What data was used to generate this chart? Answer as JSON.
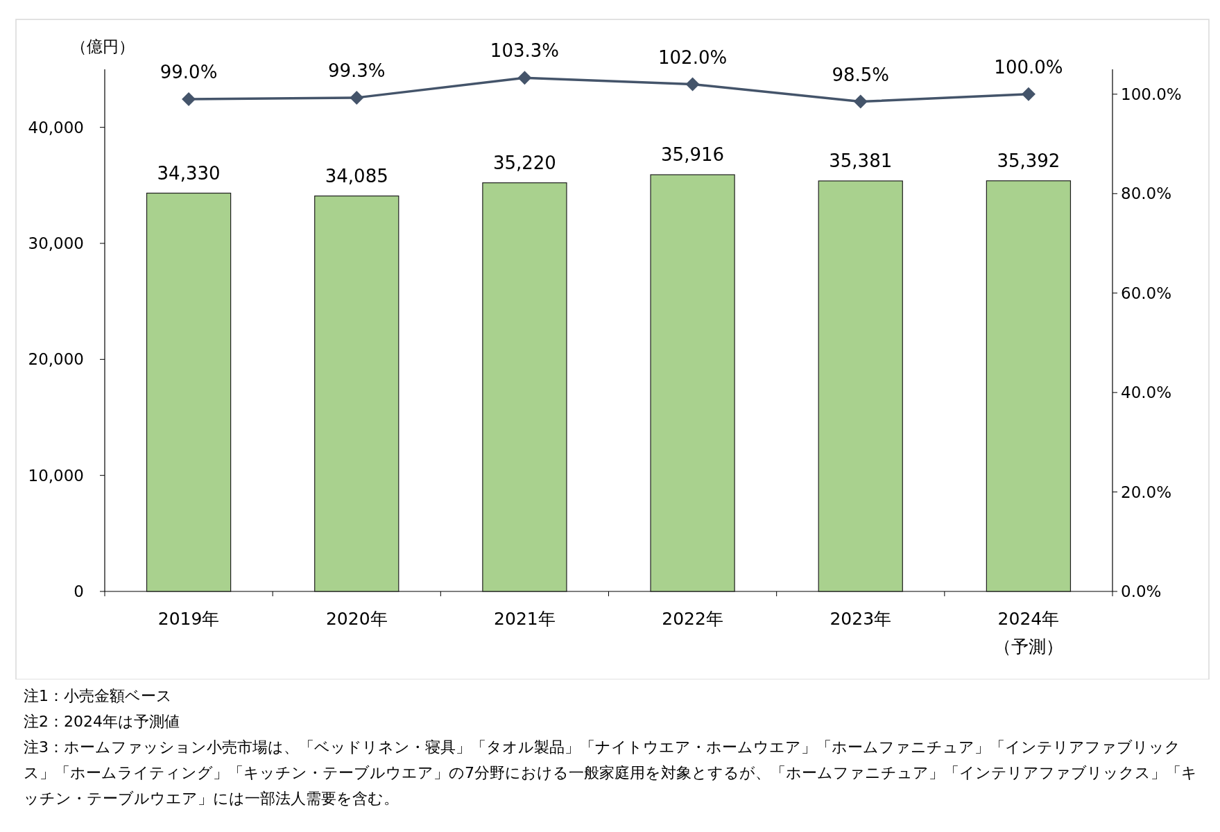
{
  "chart_data": {
    "type": "bar",
    "ylabel": "（億円）",
    "categories": [
      "2019年",
      "2020年",
      "2021年",
      "2022年",
      "2023年",
      "2024年（予測）"
    ],
    "series": [
      {
        "color": "#a9d18e",
        "values": [
          34330,
          34085,
          35220,
          35916,
          35381,
          35392
        ],
        "value_labels": [
          "34,330",
          "34,085",
          "35,220",
          "35,916",
          "35,381",
          "35,392"
        ]
      },
      {
        "type": "line",
        "axis": "y2",
        "color": "#44546a",
        "marker": "diamond",
        "line_style": "solid",
        "values": [
          99.0,
          99.3,
          103.3,
          102.0,
          98.5,
          100.0
        ],
        "value_labels": [
          "99.0%",
          "99.3%",
          "103.3%",
          "102.0%",
          "98.5%",
          "100.0%"
        ]
      }
    ],
    "ylim": [
      0,
      45000
    ],
    "yticks": [
      0,
      {
        "value": 10000,
        "label": "10,000"
      },
      {
        "value": 20000,
        "label": "20,000"
      },
      {
        "value": 30000,
        "label": "30,000"
      },
      {
        "value": 40000,
        "label": "40,000"
      }
    ],
    "y2lim": [
      0,
      105
    ],
    "y2ticks": [
      {
        "value": 0,
        "label": "0.0%"
      },
      {
        "value": 20,
        "label": "20.0%"
      },
      {
        "value": 40,
        "label": "40.0%"
      },
      {
        "value": 60,
        "label": "60.0%"
      },
      {
        "value": 80,
        "label": "80.0%"
      },
      {
        "value": 100,
        "label": "100.0%"
      }
    ],
    "grid": false,
    "annotations": [
      "注1：小売金額ベース",
      "注2：2024年は予測値",
      "注3：ホームファッション小売市場は、「ベッドリネン・寝具」「タオル製品」「ナイトウエア・ホームウエア」「ホームファニチュア」「インテリアファブリックス」「ホームライティング」「キッチン・テーブルウエア」の7分野における一般家庭用を対象とするが、「ホームファニチュア」「インテリアファブリックス」「キッチン・テーブルウエア」には一部法人需要を含む。"
    ]
  }
}
